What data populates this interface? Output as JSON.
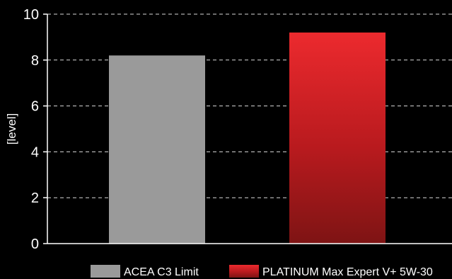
{
  "chart_data": {
    "type": "bar",
    "title": "",
    "xlabel": "",
    "ylabel": "[level]",
    "ylim": [
      0,
      10
    ],
    "yticks": [
      "0",
      "2",
      "4",
      "6",
      "8",
      "10"
    ],
    "grid": true,
    "legend_position": "bottom-right",
    "categories": [
      "ACEA C3 Limit",
      "PLATINUM Max Expert V+ 5W-30"
    ],
    "values": [
      8.2,
      9.2
    ],
    "colors": [
      "#9a9a9a",
      "#e8262a"
    ],
    "background": "#000000"
  }
}
